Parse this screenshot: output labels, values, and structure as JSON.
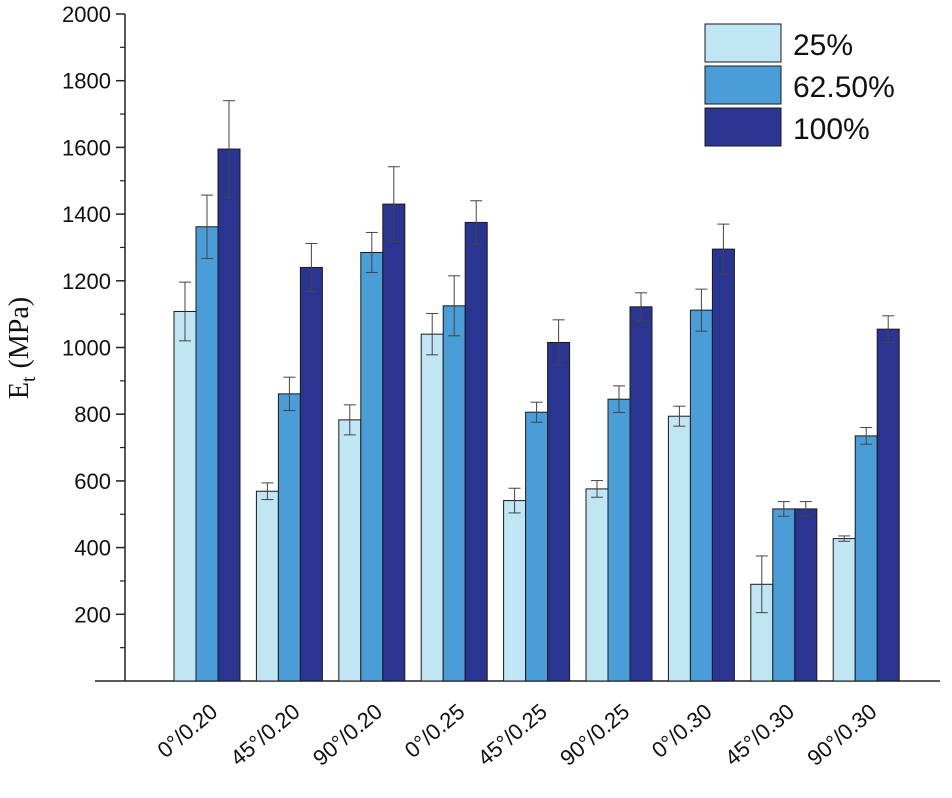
{
  "chart_data": {
    "type": "bar",
    "ylabel": "E",
    "ylabel_sub": "t",
    "ylabel_unit": "(MPa)",
    "ylim": [
      0,
      2000
    ],
    "yticks": [
      "200",
      "400",
      "600",
      "800",
      "1000",
      "1200",
      "1400",
      "1600",
      "1800",
      "2000"
    ],
    "ytick_values": [
      200,
      400,
      600,
      800,
      1000,
      1200,
      1400,
      1600,
      1800,
      2000
    ],
    "categories": [
      "0°/0.20",
      "45°/0.20",
      "90°/0.20",
      "0°/0.25",
      "45°/0.25",
      "90°/0.25",
      "0°/0.30",
      "45°/0.30",
      "90°/0.30"
    ],
    "series": [
      {
        "name": "25%",
        "color": "#bfe6f2",
        "values": [
          1108,
          569,
          783,
          1040,
          541,
          576,
          794,
          290,
          427
        ],
        "errors": [
          88,
          25,
          45,
          62,
          37,
          25,
          30,
          85,
          8
        ]
      },
      {
        "name": "62.50%",
        "color": "#4a9dd6",
        "values": [
          1362,
          861,
          1285,
          1125,
          806,
          845,
          1112,
          516,
          735
        ],
        "errors": [
          95,
          50,
          60,
          90,
          30,
          40,
          63,
          22,
          25
        ]
      },
      {
        "name": "100%",
        "color": "#2a3592",
        "values": [
          1595,
          1240,
          1430,
          1375,
          1015,
          1122,
          1295,
          516,
          1055
        ],
        "errors": [
          145,
          72,
          112,
          65,
          68,
          42,
          75,
          22,
          40
        ]
      }
    ],
    "legend_position": "top-right",
    "grid": false
  }
}
